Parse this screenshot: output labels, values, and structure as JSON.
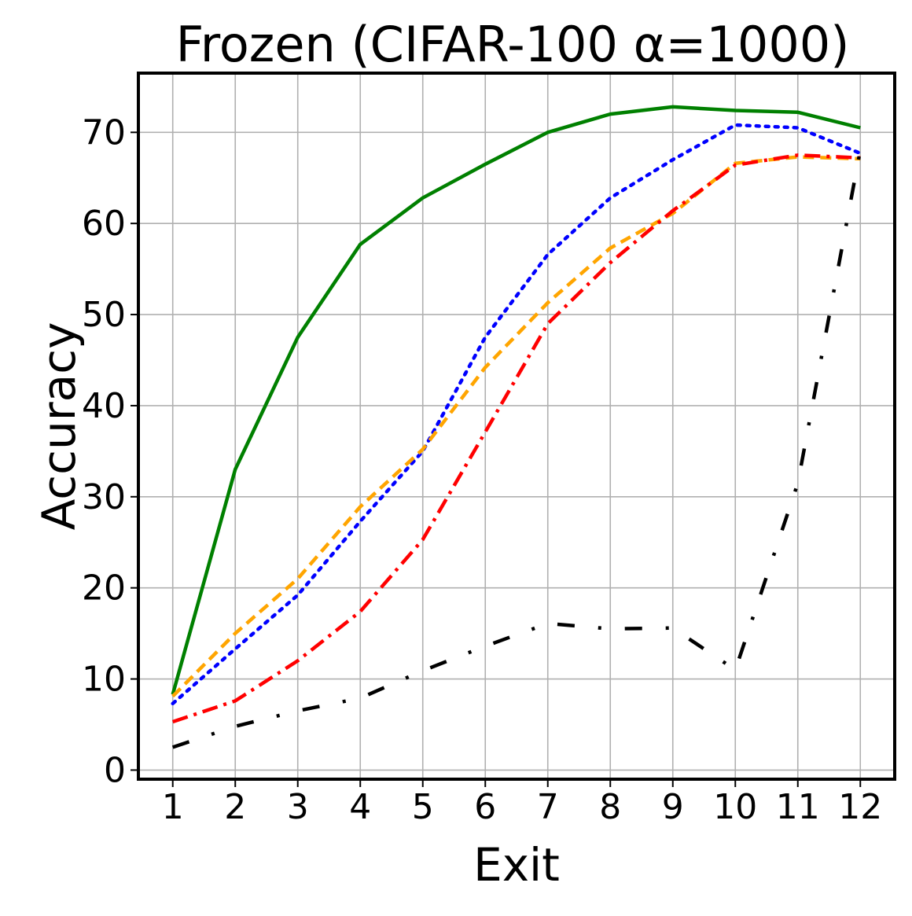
{
  "chart_data": {
    "type": "line",
    "title": "Frozen (CIFAR-100 α=1000)",
    "xlabel": "Exit",
    "ylabel": "Accuracy",
    "x": [
      1,
      2,
      3,
      4,
      5,
      6,
      7,
      8,
      9,
      10,
      11,
      12
    ],
    "xlim": [
      0.45,
      12.55
    ],
    "ylim": [
      -1,
      76.5
    ],
    "yticks": [
      0,
      10,
      20,
      30,
      40,
      50,
      60,
      70
    ],
    "grid": true,
    "series": [
      {
        "color": "#008000",
        "style": "solid",
        "values": [
          8.3,
          33.0,
          47.5,
          57.7,
          62.8,
          66.5,
          70.0,
          72.0,
          72.8,
          72.4,
          72.2,
          70.5
        ]
      },
      {
        "color": "#0000ff",
        "style": "dotted",
        "values": [
          7.3,
          13.3,
          19.2,
          27.3,
          35.0,
          47.5,
          56.6,
          62.8,
          67.0,
          70.8,
          70.5,
          67.7
        ]
      },
      {
        "color": "#ffa500",
        "style": "dashed",
        "values": [
          8.1,
          15.0,
          21.0,
          28.9,
          35.2,
          44.2,
          51.3,
          57.3,
          61.1,
          66.6,
          67.3,
          67.1
        ]
      },
      {
        "color": "#ff0000",
        "style": "dashdot",
        "values": [
          5.3,
          7.6,
          12.0,
          17.4,
          25.3,
          37.1,
          49.0,
          55.7,
          61.4,
          66.4,
          67.5,
          67.2
        ]
      },
      {
        "color": "#000000",
        "style": "loosely-dashdotted",
        "values": [
          2.5,
          4.8,
          6.5,
          7.9,
          10.9,
          13.6,
          16.1,
          15.5,
          15.6,
          11.0,
          31.5,
          68.1
        ]
      }
    ]
  }
}
